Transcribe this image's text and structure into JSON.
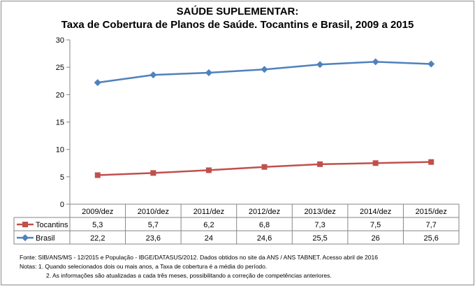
{
  "chart_data": {
    "type": "line",
    "title": "SAÚDE SUPLEMENTAR:",
    "subtitle": "Taxa de Cobertura de Planos de Saúde. Tocantins e Brasil, 2009 a 2015",
    "categories": [
      "2009/dez",
      "2010/dez",
      "2011/dez",
      "2012/dez",
      "2013/dez",
      "2014/dez",
      "2015/dez"
    ],
    "ylim": [
      0,
      30
    ],
    "yticks": [
      0,
      5,
      10,
      15,
      20,
      25,
      30
    ],
    "grid": false,
    "legend": "data-table",
    "series": [
      {
        "name": "Tocantins",
        "values": [
          5.3,
          5.7,
          6.2,
          6.8,
          7.3,
          7.5,
          7.7
        ],
        "labels": [
          "5,3",
          "5,7",
          "6,2",
          "6,8",
          "7,3",
          "7,5",
          "7,7"
        ],
        "color": "#c0504d",
        "marker": "square"
      },
      {
        "name": "Brasil",
        "values": [
          22.2,
          23.6,
          24,
          24.6,
          25.5,
          26,
          25.6
        ],
        "labels": [
          "22,2",
          "23,6",
          "24",
          "24,6",
          "25,5",
          "26",
          "25,6"
        ],
        "color": "#4f81bd",
        "marker": "diamond"
      }
    ]
  },
  "notes": {
    "source": "Fonte: SIB/ANS/MS - 12/2015 e População - IBGE/DATASUS/2012. Dados obtidos no site da ANS / ANS TABNET. Acesso abril de 2016",
    "note1": "Notas: 1. Quando selecionados dois ou mais anos, a Taxa de cobertura é a média do período.",
    "note2": "2. As informações são atualizadas a cada três meses, possibilitando a correção de competências anteriores."
  }
}
